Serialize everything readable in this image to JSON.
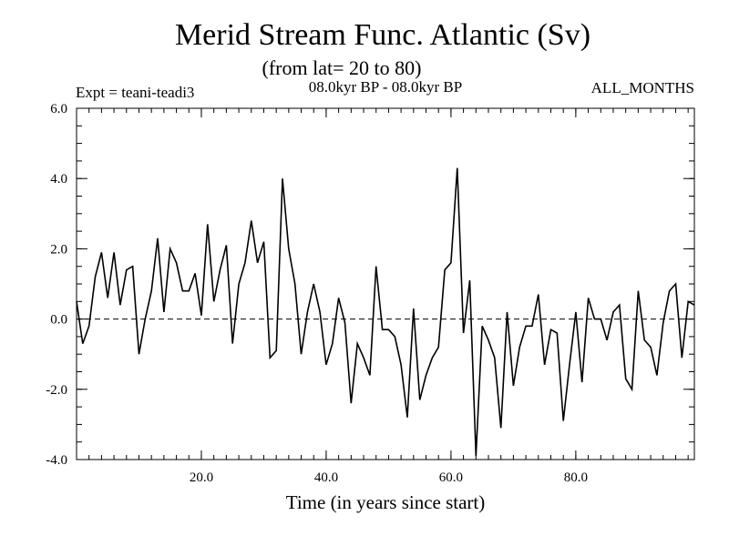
{
  "chart_data": {
    "type": "line",
    "title": "Merid Stream Func. Atlantic (Sv)",
    "subtitle": "(from lat= 20 to 80)",
    "experiment": "Expt = teani-teadi3",
    "period": "08.0kyr BP - 08.0kyr BP",
    "months": "ALL_MONTHS",
    "xlabel": "Time (in years since start)",
    "ylabel": "",
    "xlim": [
      0,
      99
    ],
    "ylim": [
      -4.0,
      6.0
    ],
    "x_ticks": [
      20,
      40,
      60,
      80
    ],
    "x_tick_labels": [
      "20.0",
      "40.0",
      "60.0",
      "80.0"
    ],
    "y_ticks": [
      -4,
      -2,
      0,
      2,
      4,
      6
    ],
    "y_tick_labels": [
      "-4.0",
      "-2.0",
      "0.0",
      "2.0",
      "4.0",
      "6.0"
    ],
    "reference_line": 0.0,
    "grid": false,
    "series": [
      {
        "name": "Merid Stream Func. Atlantic",
        "x": [
          0,
          1,
          2,
          3,
          4,
          5,
          6,
          7,
          8,
          9,
          10,
          11,
          12,
          13,
          14,
          15,
          16,
          17,
          18,
          19,
          20,
          21,
          22,
          23,
          24,
          25,
          26,
          27,
          28,
          29,
          30,
          31,
          32,
          33,
          34,
          35,
          36,
          37,
          38,
          39,
          40,
          41,
          42,
          43,
          44,
          45,
          46,
          47,
          48,
          49,
          50,
          51,
          52,
          53,
          54,
          55,
          56,
          57,
          58,
          59,
          60,
          61,
          62,
          63,
          64,
          65,
          66,
          67,
          68,
          69,
          70,
          71,
          72,
          73,
          74,
          75,
          76,
          77,
          78,
          79,
          80,
          81,
          82,
          83,
          84,
          85,
          86,
          87,
          88,
          89,
          90,
          91,
          92,
          93,
          94,
          95,
          96,
          97,
          98,
          99
        ],
        "values": [
          0.5,
          -0.7,
          -0.2,
          1.2,
          1.9,
          0.6,
          1.9,
          0.4,
          1.4,
          1.5,
          -1.0,
          0.0,
          0.8,
          2.3,
          0.2,
          2.0,
          1.6,
          0.8,
          0.8,
          1.3,
          0.1,
          2.7,
          0.5,
          1.4,
          2.1,
          -0.7,
          1.0,
          1.6,
          2.8,
          1.6,
          2.2,
          -1.1,
          -0.9,
          4.0,
          2.0,
          1.0,
          -1.0,
          0.2,
          1.0,
          0.2,
          -1.3,
          -0.7,
          0.6,
          -0.1,
          -2.4,
          -0.7,
          -1.1,
          -1.6,
          1.5,
          -0.3,
          -0.3,
          -0.5,
          -1.3,
          -2.8,
          0.3,
          -2.3,
          -1.6,
          -1.1,
          -0.8,
          1.4,
          1.6,
          4.3,
          -0.4,
          1.1,
          -3.9,
          -0.2,
          -0.6,
          -1.1,
          -3.1,
          0.2,
          -1.9,
          -0.8,
          -0.2,
          -0.2,
          0.7,
          -1.3,
          -0.3,
          -0.4,
          -2.9,
          -1.3,
          0.2,
          -1.8,
          0.6,
          0.0,
          0.0,
          -0.6,
          0.2,
          0.4,
          -1.7,
          -2.0,
          0.8,
          -0.6,
          -0.8,
          -1.6,
          -0.1,
          0.8,
          1.0,
          -1.1,
          0.5,
          0.4
        ]
      }
    ]
  }
}
